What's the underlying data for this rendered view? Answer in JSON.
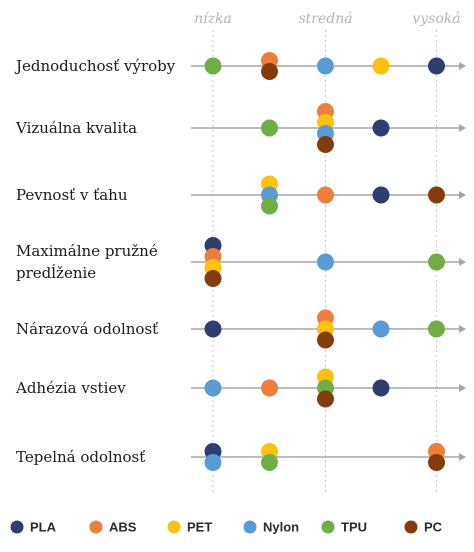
{
  "chart_data": {
    "type": "scatter",
    "x_scale_labels": [
      "nízka",
      "stredná",
      "vysoká"
    ],
    "x_values": [
      1,
      2,
      3,
      4,
      5
    ],
    "categories": [
      "Jednoduchosť výroby",
      "Vizuálna kvalita",
      "Pevnosť v ťahu",
      "Maximálne pružné predĺženie",
      "Nárazová odolnosť",
      "Adhézia vstiev",
      "Tepelná odolnosť"
    ],
    "series": [
      {
        "name": "PLA",
        "color": "#2e3e6e",
        "values": [
          5,
          4,
          4,
          1,
          1,
          4,
          1
        ]
      },
      {
        "name": "ABS",
        "color": "#ef7d3c",
        "values": [
          2,
          3,
          3,
          1,
          3,
          2,
          5
        ]
      },
      {
        "name": "PET",
        "color": "#fdc20e",
        "values": [
          4,
          3,
          2,
          1,
          3,
          3,
          2
        ]
      },
      {
        "name": "Nylon",
        "color": "#5b9bd5",
        "values": [
          3,
          3,
          2,
          3,
          4,
          1,
          1
        ]
      },
      {
        "name": "TPU",
        "color": "#70ad47",
        "values": [
          1,
          2,
          2,
          5,
          5,
          3,
          2
        ]
      },
      {
        "name": "PC",
        "color": "#843c0c",
        "values": [
          2,
          3,
          5,
          1,
          3,
          3,
          5
        ]
      }
    ],
    "xlim": [
      1,
      5
    ],
    "grid": "dotted vertical",
    "legend_position": "bottom"
  }
}
